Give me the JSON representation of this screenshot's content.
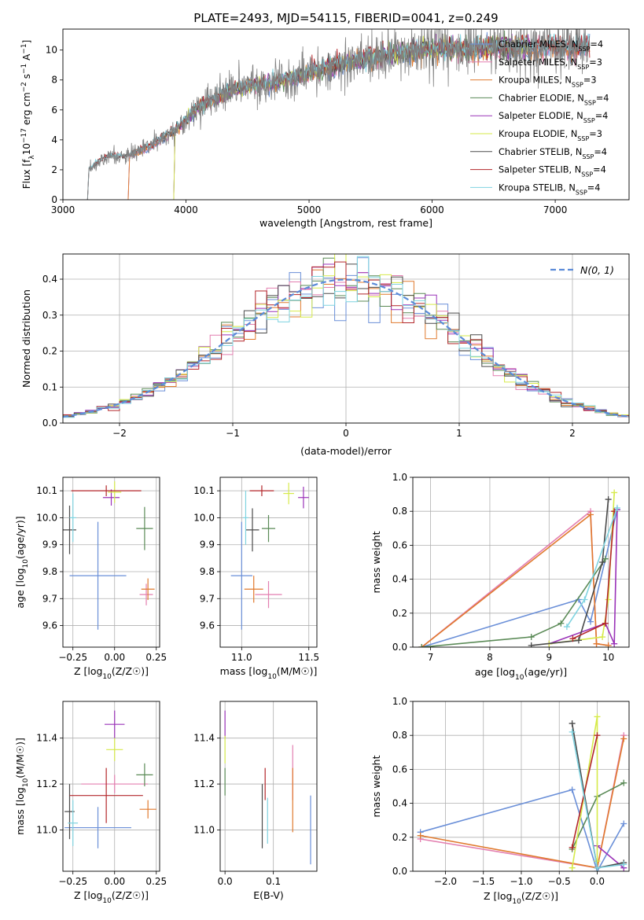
{
  "title": "PLATE=2493, MJD=54115, FIBERID=0041, z=0.249",
  "colors": {
    "chabrier_miles": "#6a8fd8",
    "salpeter_miles": "#e37fb0",
    "kroupa_miles": "#e07a2e",
    "chabrier_elodie": "#5a8a56",
    "salpeter_elodie": "#9a33b8",
    "kroupa_elodie": "#d6ea4a",
    "chabrier_stelib": "#4a4a4a",
    "salpeter_stelib": "#b3262a",
    "kroupa_stelib": "#7fd3e0",
    "normal_curve": "#5b8bd8",
    "grid": "#b0b0b0"
  },
  "legend": {
    "entries": [
      {
        "key": "chabrier_miles",
        "label": "Chabrier MILES, N_SSP=4",
        "main": "Chabrier MILES, N",
        "sub": "SSP",
        "tail": "=4"
      },
      {
        "key": "salpeter_miles",
        "label": "Salpeter MILES, N_SSP=3",
        "main": "Salpeter MILES, N",
        "sub": "SSP",
        "tail": "=3"
      },
      {
        "key": "kroupa_miles",
        "label": "Kroupa MILES, N_SSP=3",
        "main": "Kroupa MILES, N",
        "sub": "SSP",
        "tail": "=3"
      },
      {
        "key": "chabrier_elodie",
        "label": "Chabrier ELODIE, N_SSP=4",
        "main": "Chabrier ELODIE, N",
        "sub": "SSP",
        "tail": "=4"
      },
      {
        "key": "salpeter_elodie",
        "label": "Salpeter ELODIE, N_SSP=4",
        "main": "Salpeter ELODIE, N",
        "sub": "SSP",
        "tail": "=4"
      },
      {
        "key": "kroupa_elodie",
        "label": "Kroupa ELODIE, N_SSP=3",
        "main": "Kroupa ELODIE, N",
        "sub": "SSP",
        "tail": "=3"
      },
      {
        "key": "chabrier_stelib",
        "label": "Chabrier STELIB, N_SSP=4",
        "main": "Chabrier STELIB, N",
        "sub": "SSP",
        "tail": "=4"
      },
      {
        "key": "salpeter_stelib",
        "label": "Salpeter STELIB, N_SSP=4",
        "main": "Salpeter STELIB, N",
        "sub": "SSP",
        "tail": "=4"
      },
      {
        "key": "kroupa_stelib",
        "label": "Kroupa STELIB, N_SSP=4",
        "main": "Kroupa STELIB, N",
        "sub": "SSP",
        "tail": "=4"
      }
    ],
    "normal_label": "N(0, 1)"
  },
  "chart_data": [
    {
      "id": "spectrum",
      "type": "line",
      "xlabel": "wavelength [Angstrom, rest frame]",
      "ylabel": "Flux [f_λ 10^-17 erg cm^-2 s^-1 A^-1]",
      "ylabel_parts": {
        "main": "Flux [f",
        "lam": "λ",
        "mid": "10",
        "e1": "−17",
        "mid2": " erg cm",
        "e2": "−2",
        "mid3": " s",
        "e3": "−1",
        "mid4": " A",
        "e4": "−1",
        "end": "]"
      },
      "xlim": [
        3000,
        7600
      ],
      "ylim": [
        0,
        11.4
      ],
      "xticks": [
        3000,
        4000,
        5000,
        6000,
        7000
      ],
      "yticks": [
        0,
        2,
        4,
        6,
        8,
        10
      ],
      "legend_position": "upper right",
      "grid": false,
      "observed_color_key": "chabrier_stelib",
      "model_profile": {
        "x": [
          3200,
          3300,
          3400,
          3500,
          3600,
          3700,
          3800,
          3900,
          4000,
          4100,
          4200,
          4300,
          4400,
          4500,
          4600,
          4700,
          4800,
          4900,
          5000,
          5100,
          5200,
          5300,
          5400,
          5500,
          5600,
          5700,
          5800,
          5900,
          6000,
          6100,
          6200,
          6300,
          6400,
          6500,
          6600,
          6700,
          6800,
          6900,
          7000,
          7100,
          7200,
          7300
        ],
        "y": [
          1.9,
          2.6,
          2.9,
          2.8,
          3.2,
          3.5,
          4.1,
          4.6,
          5.3,
          6.2,
          6.6,
          7.1,
          7.4,
          7.6,
          7.7,
          7.8,
          8.0,
          8.2,
          8.5,
          8.7,
          9.0,
          9.1,
          9.3,
          9.5,
          9.6,
          9.8,
          9.9,
          10.0,
          10.0,
          10.1,
          10.1,
          10.0,
          10.1,
          10.2,
          10.2,
          10.2,
          10.1,
          10.2,
          10.2,
          10.1,
          10.2,
          10.3
        ]
      },
      "model_starts": {
        "chabrier_miles": 3530,
        "salpeter_miles": 3530,
        "kroupa_miles": 3530,
        "chabrier_elodie": 3900,
        "salpeter_elodie": 3900,
        "kroupa_elodie": 3900,
        "chabrier_stelib": 3200,
        "salpeter_stelib": 3200,
        "kroupa_stelib": 3200
      },
      "model_ends": {
        "chabrier_miles": 7280,
        "salpeter_miles": 7280,
        "kroupa_miles": 7280,
        "chabrier_elodie": 6800,
        "salpeter_elodie": 6800,
        "kroupa_elodie": 6800,
        "chabrier_stelib": 7280,
        "salpeter_stelib": 7280,
        "kroupa_stelib": 7280
      }
    },
    {
      "id": "residuals",
      "type": "histogram",
      "xlabel": "(data-model)/error",
      "ylabel": "Normed distribution",
      "xlim": [
        -2.5,
        2.5
      ],
      "ylim": [
        0,
        0.47
      ],
      "xticks": [
        -2,
        -1,
        0,
        1,
        2
      ],
      "yticks": [
        0.0,
        0.1,
        0.2,
        0.3,
        0.4
      ],
      "grid": true,
      "legend_position": "upper right",
      "bin_width": 0.1,
      "bin_start": -2.5,
      "normal_mu": 0,
      "normal_sigma": 1
    },
    {
      "id": "age_vs_Z",
      "type": "scatter",
      "xlabel": "Z [log10(Z/Z☉)]",
      "xlabel_parts": {
        "main": "Z [log",
        "sub": "10",
        "end": "(Z/Z☉)]"
      },
      "ylabel": "age [log10(age/yr)]",
      "ylabel_parts": {
        "main": "age  [log",
        "sub": "10",
        "end": "(age/yr)]"
      },
      "xlim": [
        -0.31,
        0.27
      ],
      "ylim": [
        9.52,
        10.15
      ],
      "xticks": [
        -0.25,
        0.0,
        0.25
      ],
      "xticklabels": [
        "−0.25",
        "0.00",
        "0.25"
      ],
      "yticks": [
        9.6,
        9.7,
        9.8,
        9.9,
        10.0,
        10.1
      ],
      "grid": true,
      "points": [
        {
          "key": "chabrier_miles",
          "x": -0.1,
          "y": 9.785,
          "xerr": 0.17,
          "yerr": 0.2
        },
        {
          "key": "salpeter_miles",
          "x": 0.19,
          "y": 9.715,
          "xerr": 0.04,
          "yerr": 0.04
        },
        {
          "key": "kroupa_miles",
          "x": 0.2,
          "y": 9.735,
          "xerr": 0.04,
          "yerr": 0.04
        },
        {
          "key": "chabrier_elodie",
          "x": 0.18,
          "y": 9.96,
          "xerr": 0.05,
          "yerr": 0.08
        },
        {
          "key": "salpeter_elodie",
          "x": -0.02,
          "y": 10.075,
          "xerr": 0.05,
          "yerr": 0.03
        },
        {
          "key": "kroupa_elodie",
          "x": 0.0,
          "y": 10.095,
          "xerr": 0.04,
          "yerr": 0.04
        },
        {
          "key": "chabrier_stelib",
          "x": -0.27,
          "y": 9.955,
          "xerr": 0.04,
          "yerr": 0.09
        },
        {
          "key": "salpeter_stelib",
          "x": -0.05,
          "y": 10.1,
          "xerr": 0.21,
          "yerr": 0.02
        },
        {
          "key": "kroupa_stelib",
          "x": -0.25,
          "y": 10.0,
          "xerr": 0.02,
          "yerr": 0.09
        }
      ]
    },
    {
      "id": "age_vs_mass",
      "type": "scatter",
      "xlabel": "mass [log10(M/M☉)]",
      "xlabel_parts": {
        "main": "mass [log",
        "sub": "10",
        "end": "(M/M☉)]"
      },
      "ylabel": "",
      "xlim": [
        10.84,
        11.56
      ],
      "ylim": [
        9.52,
        10.15
      ],
      "xticks": [
        11.0,
        11.5
      ],
      "yticks": [
        9.6,
        9.7,
        9.8,
        9.9,
        10.0,
        10.1
      ],
      "grid": true,
      "points": [
        {
          "key": "chabrier_miles",
          "x": 11.0,
          "y": 9.785,
          "xerr": 0.08,
          "yerr": 0.2
        },
        {
          "key": "salpeter_miles",
          "x": 11.2,
          "y": 9.715,
          "xerr": 0.1,
          "yerr": 0.05
        },
        {
          "key": "kroupa_miles",
          "x": 11.09,
          "y": 9.735,
          "xerr": 0.07,
          "yerr": 0.05
        },
        {
          "key": "chabrier_elodie",
          "x": 11.2,
          "y": 9.96,
          "xerr": 0.05,
          "yerr": 0.05
        },
        {
          "key": "salpeter_elodie",
          "x": 11.46,
          "y": 10.075,
          "xerr": 0.04,
          "yerr": 0.04
        },
        {
          "key": "kroupa_elodie",
          "x": 11.35,
          "y": 10.09,
          "xerr": 0.04,
          "yerr": 0.04
        },
        {
          "key": "chabrier_stelib",
          "x": 11.08,
          "y": 9.955,
          "xerr": 0.05,
          "yerr": 0.08
        },
        {
          "key": "salpeter_stelib",
          "x": 11.15,
          "y": 10.1,
          "xerr": 0.09,
          "yerr": 0.02
        },
        {
          "key": "kroupa_stelib",
          "x": 11.03,
          "y": 10.0,
          "xerr": 0.02,
          "yerr": 0.1
        }
      ]
    },
    {
      "id": "weight_vs_age",
      "type": "line",
      "xlabel": "age [log10(age/yr)]",
      "xlabel_parts": {
        "main": "age  [log",
        "sub": "10",
        "end": "(age/yr)]"
      },
      "ylabel": "mass weight",
      "xlim": [
        6.7,
        10.35
      ],
      "ylim": [
        0,
        1.0
      ],
      "xticks": [
        7,
        8,
        9,
        10
      ],
      "yticks": [
        0.0,
        0.2,
        0.4,
        0.6,
        0.8,
        1.0
      ],
      "grid": true,
      "series": [
        {
          "key": "chabrier_miles",
          "x": [
            6.85,
            9.5,
            9.7,
            10.15
          ],
          "y": [
            0.0,
            0.28,
            0.15,
            0.81
          ]
        },
        {
          "key": "salpeter_miles",
          "x": [
            6.85,
            9.7,
            9.8,
            10.0
          ],
          "y": [
            0.0,
            0.8,
            0.02,
            0.01
          ]
        },
        {
          "key": "kroupa_miles",
          "x": [
            6.85,
            9.7,
            9.8,
            10.0
          ],
          "y": [
            0.0,
            0.78,
            0.02,
            0.01
          ]
        },
        {
          "key": "chabrier_elodie",
          "x": [
            6.85,
            8.7,
            9.2,
            9.95
          ],
          "y": [
            0.0,
            0.06,
            0.14,
            0.52
          ]
        },
        {
          "key": "salpeter_elodie",
          "x": [
            9.0,
            9.95,
            10.1,
            10.15
          ],
          "y": [
            0.02,
            0.14,
            0.02,
            0.81
          ]
        },
        {
          "key": "kroupa_elodie",
          "x": [
            9.0,
            9.9,
            10.0,
            10.1
          ],
          "y": [
            0.02,
            0.06,
            0.28,
            0.91
          ]
        },
        {
          "key": "chabrier_stelib",
          "x": [
            8.7,
            9.5,
            9.9,
            10.0
          ],
          "y": [
            0.01,
            0.04,
            0.5,
            0.87
          ]
        },
        {
          "key": "salpeter_stelib",
          "x": [
            9.4,
            9.95,
            10.1
          ],
          "y": [
            0.05,
            0.14,
            0.8
          ]
        },
        {
          "key": "kroupa_stelib",
          "x": [
            9.3,
            9.6,
            10.15
          ],
          "y": [
            0.12,
            0.28,
            0.82
          ]
        }
      ]
    },
    {
      "id": "mass_vs_Z",
      "type": "scatter",
      "xlabel": "Z [log10(Z/Z☉)]",
      "xlabel_parts": {
        "main": "Z [log",
        "sub": "10",
        "end": "(Z/Z☉)]"
      },
      "ylabel": "mass [log10(M/M☉)]",
      "ylabel_parts": {
        "main": "mass [log",
        "sub": "10",
        "end": "(M/M☉)]"
      },
      "xlim": [
        -0.31,
        0.27
      ],
      "ylim": [
        10.82,
        11.56
      ],
      "xticks": [
        -0.25,
        0.0,
        0.25
      ],
      "xticklabels": [
        "−0.25",
        "0.00",
        "0.25"
      ],
      "yticks": [
        11.0,
        11.2,
        11.4
      ],
      "grid": true,
      "points": [
        {
          "key": "chabrier_miles",
          "x": -0.1,
          "y": 11.01,
          "xerr": 0.2,
          "yerr": 0.09
        },
        {
          "key": "salpeter_miles",
          "x": 0.0,
          "y": 11.2,
          "xerr": 0.2,
          "yerr": 0.04
        },
        {
          "key": "kroupa_miles",
          "x": 0.2,
          "y": 11.09,
          "xerr": 0.05,
          "yerr": 0.04
        },
        {
          "key": "chabrier_elodie",
          "x": 0.18,
          "y": 11.24,
          "xerr": 0.05,
          "yerr": 0.05
        },
        {
          "key": "salpeter_elodie",
          "x": 0.0,
          "y": 11.46,
          "xerr": 0.06,
          "yerr": 0.06
        },
        {
          "key": "kroupa_elodie",
          "x": 0.0,
          "y": 11.35,
          "xerr": 0.05,
          "yerr": 0.05
        },
        {
          "key": "chabrier_stelib",
          "x": -0.27,
          "y": 11.08,
          "xerr": 0.03,
          "yerr": 0.12
        },
        {
          "key": "salpeter_stelib",
          "x": -0.05,
          "y": 11.15,
          "xerr": 0.22,
          "yerr": 0.12
        },
        {
          "key": "kroupa_stelib",
          "x": -0.25,
          "y": 11.03,
          "xerr": 0.03,
          "yerr": 0.1
        }
      ]
    },
    {
      "id": "mass_vs_ebv",
      "type": "scatter",
      "xlabel": "E(B-V)",
      "ylabel": "",
      "xlim": [
        -0.01,
        0.19
      ],
      "ylim": [
        10.82,
        11.56
      ],
      "xticks": [
        0.0,
        0.1
      ],
      "xticklabels": [
        "0.0",
        "0.1"
      ],
      "yticks": [
        11.0,
        11.2,
        11.4
      ],
      "grid": true,
      "points": [
        {
          "key": "chabrier_miles",
          "x": 0.177,
          "y": 11.0,
          "xerr": 0,
          "yerr": 0.15
        },
        {
          "key": "salpeter_miles",
          "x": 0.14,
          "y": 11.25,
          "xerr": 0,
          "yerr": 0.12
        },
        {
          "key": "kroupa_miles",
          "x": 0.14,
          "y": 11.13,
          "xerr": 0,
          "yerr": 0.14
        },
        {
          "key": "chabrier_elodie",
          "x": 0.0,
          "y": 11.21,
          "xerr": 0,
          "yerr": 0.06
        },
        {
          "key": "salpeter_elodie",
          "x": 0.0,
          "y": 11.46,
          "xerr": 0,
          "yerr": 0.06
        },
        {
          "key": "kroupa_elodie",
          "x": 0.0,
          "y": 11.35,
          "xerr": 0,
          "yerr": 0.06
        },
        {
          "key": "chabrier_stelib",
          "x": 0.077,
          "y": 11.06,
          "xerr": 0,
          "yerr": 0.14
        },
        {
          "key": "salpeter_stelib",
          "x": 0.083,
          "y": 11.2,
          "xerr": 0,
          "yerr": 0.07
        },
        {
          "key": "kroupa_stelib",
          "x": 0.088,
          "y": 11.04,
          "xerr": 0,
          "yerr": 0.1
        }
      ]
    },
    {
      "id": "weight_vs_Z",
      "type": "line",
      "xlabel": "Z [log10(Z/Z☉)]",
      "xlabel_parts": {
        "main": "Z [log",
        "sub": "10",
        "end": "(Z/Z☉)]"
      },
      "ylabel": "mass weight",
      "xlim": [
        -2.43,
        0.42
      ],
      "ylim": [
        0,
        1.0
      ],
      "xticks": [
        -2.0,
        -1.5,
        -1.0,
        -0.5,
        0.0
      ],
      "xticklabels": [
        "−2.0",
        "−1.5",
        "−1.0",
        "−0.5",
        "0.0"
      ],
      "yticks": [
        0.0,
        0.2,
        0.4,
        0.6,
        0.8,
        1.0
      ],
      "grid": true,
      "series": [
        {
          "key": "chabrier_miles",
          "x": [
            -2.33,
            -0.33,
            0.0,
            0.35
          ],
          "y": [
            0.23,
            0.48,
            0.0,
            0.28
          ]
        },
        {
          "key": "salpeter_miles",
          "x": [
            -2.33,
            0.0,
            0.35
          ],
          "y": [
            0.19,
            0.02,
            0.8
          ]
        },
        {
          "key": "kroupa_miles",
          "x": [
            -2.33,
            0.0,
            0.35
          ],
          "y": [
            0.21,
            0.02,
            0.78
          ]
        },
        {
          "key": "chabrier_elodie",
          "x": [
            -0.33,
            0.0,
            0.35
          ],
          "y": [
            0.13,
            0.44,
            0.52
          ]
        },
        {
          "key": "salpeter_elodie",
          "x": [
            0.0,
            0.35
          ],
          "y": [
            0.15,
            0.02
          ]
        },
        {
          "key": "kroupa_elodie",
          "x": [
            -0.33,
            0.0,
            0.0
          ],
          "y": [
            0.02,
            0.91,
            0.06
          ]
        },
        {
          "key": "chabrier_stelib",
          "x": [
            -0.33,
            0.0,
            0.35
          ],
          "y": [
            0.87,
            0.02,
            0.05
          ]
        },
        {
          "key": "salpeter_stelib",
          "x": [
            -0.33,
            0.0
          ],
          "y": [
            0.14,
            0.8
          ]
        },
        {
          "key": "kroupa_stelib",
          "x": [
            -0.33,
            0.0,
            0.35
          ],
          "y": [
            0.82,
            0.02,
            0.04
          ]
        }
      ]
    }
  ]
}
